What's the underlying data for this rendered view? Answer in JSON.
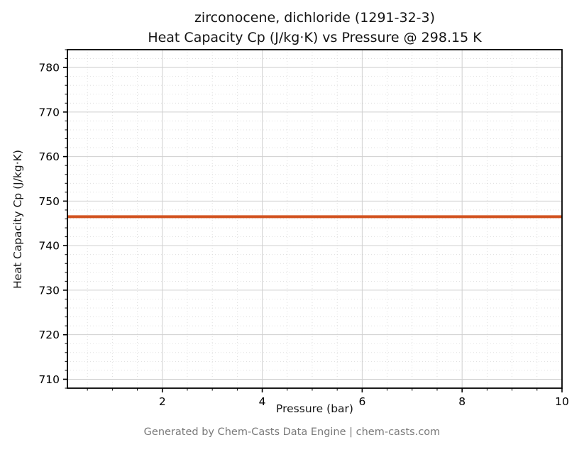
{
  "chart_data": {
    "type": "line",
    "title_line1": "zirconocene, dichloride (1291-32-3)",
    "title_line2": "Heat Capacity Cp (J/kg·K) vs Pressure @ 298.15 K",
    "xlabel": "Pressure (bar)",
    "ylabel": "Heat Capacity Cp (J/kg·K)",
    "series": [
      {
        "name": "Cp",
        "x": [
          0.1,
          10
        ],
        "y": [
          746.5,
          746.5
        ],
        "color": "#d2521f",
        "linewidth": 4
      }
    ],
    "xlim": [
      0.1,
      10
    ],
    "ylim": [
      708,
      784
    ],
    "xticks": [
      2,
      4,
      6,
      8,
      10
    ],
    "yticks": [
      710,
      720,
      730,
      740,
      750,
      760,
      770,
      780
    ],
    "x_minor_step": 0.5,
    "y_minor_step": 2,
    "grid": true,
    "legend": "none",
    "temperature_condition": "298.15 K",
    "cas_number": "1291-32-3"
  },
  "footer": {
    "text": "Generated by Chem-Casts Data Engine | chem-casts.com"
  },
  "colors": {
    "line": "#d2521f",
    "major_grid": "#cfcfcf",
    "minor_grid": "#d9d9d9",
    "axis": "#000000",
    "footer_text": "#7a7a7a"
  }
}
